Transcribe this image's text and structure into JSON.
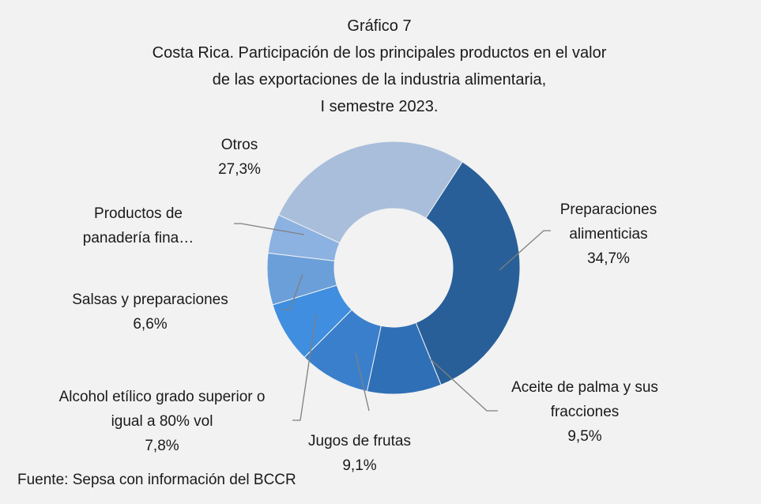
{
  "chart_data": {
    "type": "pie",
    "title": "Gráfico 7",
    "subtitle": [
      "Costa Rica.  Participación de los principales productos en el valor",
      "de las exportaciones de la industria alimentaria,",
      "I semestre 2023."
    ],
    "categories": [
      "Preparaciones alimenticias",
      "Aceite de palma y sus fracciones",
      "Jugos de frutas",
      "Alcohol etílico grado superior o igual a 80% vol",
      "Salsas y preparaciones",
      "Productos de panadería fina…",
      "Otros"
    ],
    "values": [
      34.7,
      9.5,
      9.1,
      7.8,
      6.6,
      5.0,
      27.3
    ],
    "value_labels": [
      "34,7%",
      "9,5%",
      "9,1%",
      "7,8%",
      "6,6%",
      null,
      "27,3%"
    ],
    "colors": [
      "#285f99",
      "#2f6fb6",
      "#3a7fcc",
      "#3f8edf",
      "#6b9fd9",
      "#8cb2e2",
      "#a8bedb"
    ],
    "donut": true,
    "source": "Fuente: Sepsa con información del BCCR"
  }
}
